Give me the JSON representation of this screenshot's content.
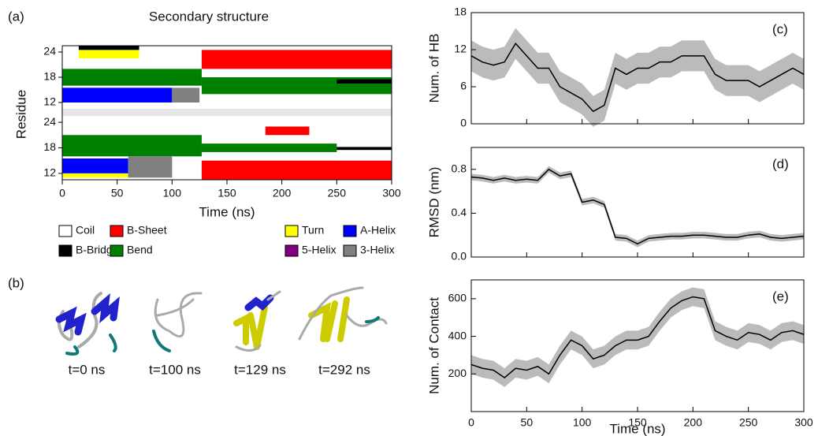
{
  "panel_b_label": "(b)",
  "snapshots": [
    "t=0 ns",
    "t=100 ns",
    "t=129 ns",
    "t=292 ns"
  ],
  "chart_data": [
    {
      "type": "heatmap",
      "panel_label": "(a)",
      "title": "Secondary structure",
      "xlabel": "Time (ns)",
      "ylabel": "Residue",
      "xlim": [
        0,
        300
      ],
      "xticks": [
        0,
        50,
        100,
        150,
        200,
        250,
        300
      ],
      "legend": [
        {
          "name": "Coil",
          "color": "#ffffff"
        },
        {
          "name": "B-Sheet",
          "color": "#ff0000"
        },
        {
          "name": "Turn",
          "color": "#ffff00"
        },
        {
          "name": "A-Helix",
          "color": "#0000ff"
        },
        {
          "name": "B-Bridge",
          "color": "#000000"
        },
        {
          "name": "Bend",
          "color": "#008000"
        },
        {
          "name": "5-Helix",
          "color": "#800080"
        },
        {
          "name": "3-Helix",
          "color": "#808080"
        }
      ],
      "panels": [
        {
          "ylim": [
            10.5,
            25.5
          ],
          "yticks": [
            12,
            18,
            24
          ],
          "segments": [
            {
              "state": "B-Sheet",
              "res": [
                20,
                24.5
              ],
              "t": [
                127,
                300
              ]
            },
            {
              "state": "Turn",
              "res": [
                22.5,
                24.5
              ],
              "t": [
                15,
                70
              ]
            },
            {
              "state": "B-Bridge",
              "res": [
                24.5,
                25.5
              ],
              "t": [
                15,
                70
              ]
            },
            {
              "state": "Bend",
              "res": [
                16,
                20
              ],
              "t": [
                0,
                127
              ]
            },
            {
              "state": "A-Helix",
              "res": [
                12,
                15.5
              ],
              "t": [
                0,
                100
              ]
            },
            {
              "state": "3-Helix",
              "res": [
                12,
                15.5
              ],
              "t": [
                100,
                125
              ]
            },
            {
              "state": "Bend",
              "res": [
                14,
                18
              ],
              "t": [
                127,
                300
              ]
            },
            {
              "state": "B-Bridge",
              "res": [
                16.5,
                17.5
              ],
              "t": [
                250,
                300
              ]
            }
          ]
        },
        {
          "ylim": [
            10.5,
            25.5
          ],
          "yticks": [
            12,
            18,
            24
          ],
          "segments": [
            {
              "state": "B-Sheet",
              "res": [
                10.5,
                15
              ],
              "t": [
                127,
                300
              ]
            },
            {
              "state": "B-Sheet",
              "res": [
                21,
                23
              ],
              "t": [
                185,
                225
              ]
            },
            {
              "state": "A-Helix",
              "res": [
                12,
                15.5
              ],
              "t": [
                0,
                60
              ]
            },
            {
              "state": "Turn",
              "res": [
                11,
                12
              ],
              "t": [
                0,
                60
              ]
            },
            {
              "state": "Bend",
              "res": [
                16,
                21
              ],
              "t": [
                0,
                127
              ]
            },
            {
              "state": "Bend",
              "res": [
                17,
                19
              ],
              "t": [
                127,
                250
              ]
            },
            {
              "state": "B-Bridge",
              "res": [
                17.5,
                18.2
              ],
              "t": [
                250,
                300
              ]
            },
            {
              "state": "3-Helix",
              "res": [
                11,
                16
              ],
              "t": [
                60,
                100
              ]
            }
          ]
        }
      ]
    },
    {
      "type": "line",
      "panel_label": "(c)",
      "ylabel": "Num. of HB",
      "show_xtick_labels": false,
      "xlim": [
        0,
        300
      ],
      "xticks": [
        0,
        50,
        100,
        150,
        200,
        250,
        300
      ],
      "ylim": [
        0,
        18
      ],
      "yticks": [
        0,
        6,
        12,
        18
      ],
      "x": [
        0,
        10,
        20,
        30,
        40,
        50,
        60,
        70,
        80,
        90,
        100,
        110,
        120,
        130,
        140,
        150,
        160,
        170,
        180,
        190,
        200,
        210,
        220,
        230,
        240,
        250,
        260,
        270,
        280,
        290,
        300
      ],
      "values": [
        11,
        10,
        9.5,
        10,
        13,
        11,
        9,
        9,
        6,
        5,
        4,
        2,
        3,
        9,
        8,
        9,
        9,
        10,
        10,
        11,
        11,
        11,
        8,
        7,
        7,
        7,
        6,
        7,
        8,
        9,
        8
      ],
      "error": 2.5,
      "color": "#000000",
      "band_color": "#bbbbbb"
    },
    {
      "type": "line",
      "panel_label": "(d)",
      "ylabel": "RMSD (nm)",
      "show_xtick_labels": false,
      "xlim": [
        0,
        300
      ],
      "xticks": [
        0,
        50,
        100,
        150,
        200,
        250,
        300
      ],
      "ylim": [
        0,
        1
      ],
      "yticks": [
        {
          "value": 0,
          "label": "0.0"
        },
        0.4,
        0.8
      ],
      "x": [
        0,
        10,
        20,
        30,
        40,
        50,
        60,
        70,
        80,
        90,
        100,
        110,
        120,
        130,
        140,
        150,
        160,
        170,
        180,
        190,
        200,
        210,
        220,
        230,
        240,
        250,
        260,
        270,
        280,
        290,
        300
      ],
      "values": [
        0.73,
        0.72,
        0.7,
        0.72,
        0.7,
        0.71,
        0.7,
        0.8,
        0.74,
        0.76,
        0.5,
        0.52,
        0.48,
        0.18,
        0.17,
        0.12,
        0.17,
        0.18,
        0.19,
        0.19,
        0.2,
        0.2,
        0.19,
        0.18,
        0.18,
        0.2,
        0.21,
        0.18,
        0.17,
        0.18,
        0.19
      ],
      "error": 0.03,
      "color": "#000000",
      "band_color": "#bbbbbb"
    },
    {
      "type": "line",
      "panel_label": "(e)",
      "ylabel": "Num. of Contact",
      "xlabel": "Time (ns)",
      "show_xtick_labels": true,
      "xlim": [
        0,
        300
      ],
      "xticks": [
        0,
        50,
        100,
        150,
        200,
        250,
        300
      ],
      "ylim": [
        0,
        700
      ],
      "yticks": [
        200,
        400,
        600
      ],
      "x": [
        0,
        10,
        20,
        30,
        40,
        50,
        60,
        70,
        80,
        90,
        100,
        110,
        120,
        130,
        140,
        150,
        160,
        170,
        180,
        190,
        200,
        210,
        220,
        230,
        240,
        250,
        260,
        270,
        280,
        290,
        300
      ],
      "values": [
        250,
        230,
        220,
        180,
        230,
        220,
        240,
        200,
        300,
        380,
        350,
        280,
        300,
        350,
        380,
        380,
        400,
        480,
        550,
        590,
        610,
        600,
        430,
        400,
        380,
        420,
        410,
        380,
        420,
        430,
        410
      ],
      "error": 50,
      "color": "#000000",
      "band_color": "#bbbbbb"
    }
  ]
}
